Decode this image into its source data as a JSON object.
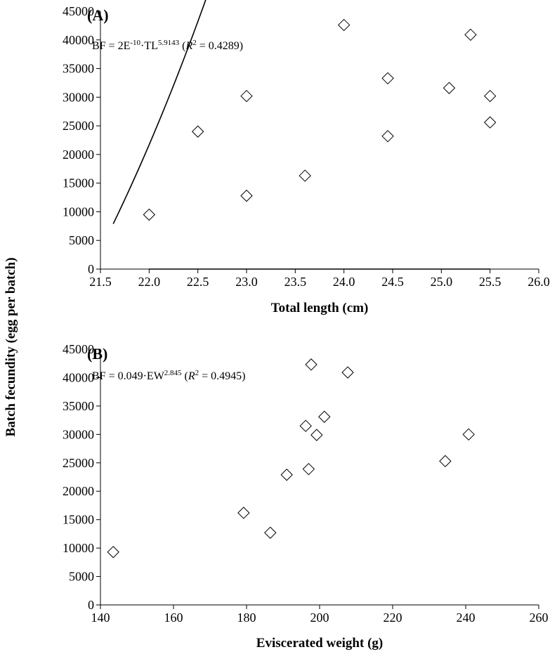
{
  "shared": {
    "ylabel": "Batch fecundity  (egg per batch)"
  },
  "chart_data": [
    {
      "type": "scatter",
      "panel_label": "(A)",
      "xlabel": "Total length (cm)",
      "xlim": [
        21.5,
        26.0
      ],
      "ylim": [
        0,
        45000
      ],
      "x_ticks": [
        "21.5",
        "22.0",
        "22.5",
        "23.0",
        "23.5",
        "24.0",
        "24.5",
        "25.0",
        "25.5",
        "26.0"
      ],
      "y_ticks": [
        "0",
        "5000",
        "10000",
        "15000",
        "20000",
        "25000",
        "30000",
        "35000",
        "40000",
        "45000"
      ],
      "equation": {
        "lhs": "BF = 2E",
        "exp1": "-10",
        "mid": "·TL",
        "exp2": "5.9143",
        "open": " (",
        "r": "R",
        "r_exp": "2",
        "close": " = 0.4289)"
      },
      "points": [
        {
          "x": 22.0,
          "y": 9500
        },
        {
          "x": 22.5,
          "y": 24000
        },
        {
          "x": 23.0,
          "y": 30200
        },
        {
          "x": 23.0,
          "y": 12800
        },
        {
          "x": 23.6,
          "y": 16300
        },
        {
          "x": 24.0,
          "y": 42600
        },
        {
          "x": 24.45,
          "y": 33300
        },
        {
          "x": 24.45,
          "y": 23200
        },
        {
          "x": 25.08,
          "y": 31600
        },
        {
          "x": 25.3,
          "y": 40900
        },
        {
          "x": 25.5,
          "y": 30200
        },
        {
          "x": 25.5,
          "y": 25600
        }
      ],
      "fit": {
        "a": 2e-10,
        "b": 5.9143,
        "x_range": [
          22.0,
          25.5
        ]
      },
      "grid": false,
      "marker": "open-diamond"
    },
    {
      "type": "scatter",
      "panel_label": "(B)",
      "xlabel": "Eviscerated weight (g)",
      "xlim": [
        140,
        260
      ],
      "ylim": [
        0,
        45000
      ],
      "x_ticks": [
        "140",
        "160",
        "180",
        "200",
        "220",
        "240",
        "260"
      ],
      "y_ticks": [
        "0",
        "5000",
        "10000",
        "15000",
        "20000",
        "25000",
        "30000",
        "35000",
        "40000",
        "45000"
      ],
      "equation": {
        "lhs": "BF = 0.049·EW",
        "exp1": "",
        "mid": "",
        "exp2": "2.845",
        "open": " (",
        "r": "R",
        "r_exp": "2",
        "close": " = 0.4945)"
      },
      "points": [
        {
          "x": 143.5,
          "y": 9300
        },
        {
          "x": 179.2,
          "y": 16200
        },
        {
          "x": 186.5,
          "y": 12700
        },
        {
          "x": 191.0,
          "y": 22900
        },
        {
          "x": 196.2,
          "y": 31500
        },
        {
          "x": 197.0,
          "y": 23900
        },
        {
          "x": 197.7,
          "y": 42300
        },
        {
          "x": 199.2,
          "y": 29900
        },
        {
          "x": 201.3,
          "y": 33100
        },
        {
          "x": 207.7,
          "y": 40900
        },
        {
          "x": 234.4,
          "y": 25300
        },
        {
          "x": 240.8,
          "y": 30000
        }
      ],
      "fit": {
        "a": 0.049,
        "b": 2.845,
        "x_range": [
          143.5,
          240.8
        ]
      },
      "grid": false,
      "marker": "open-diamond"
    }
  ]
}
